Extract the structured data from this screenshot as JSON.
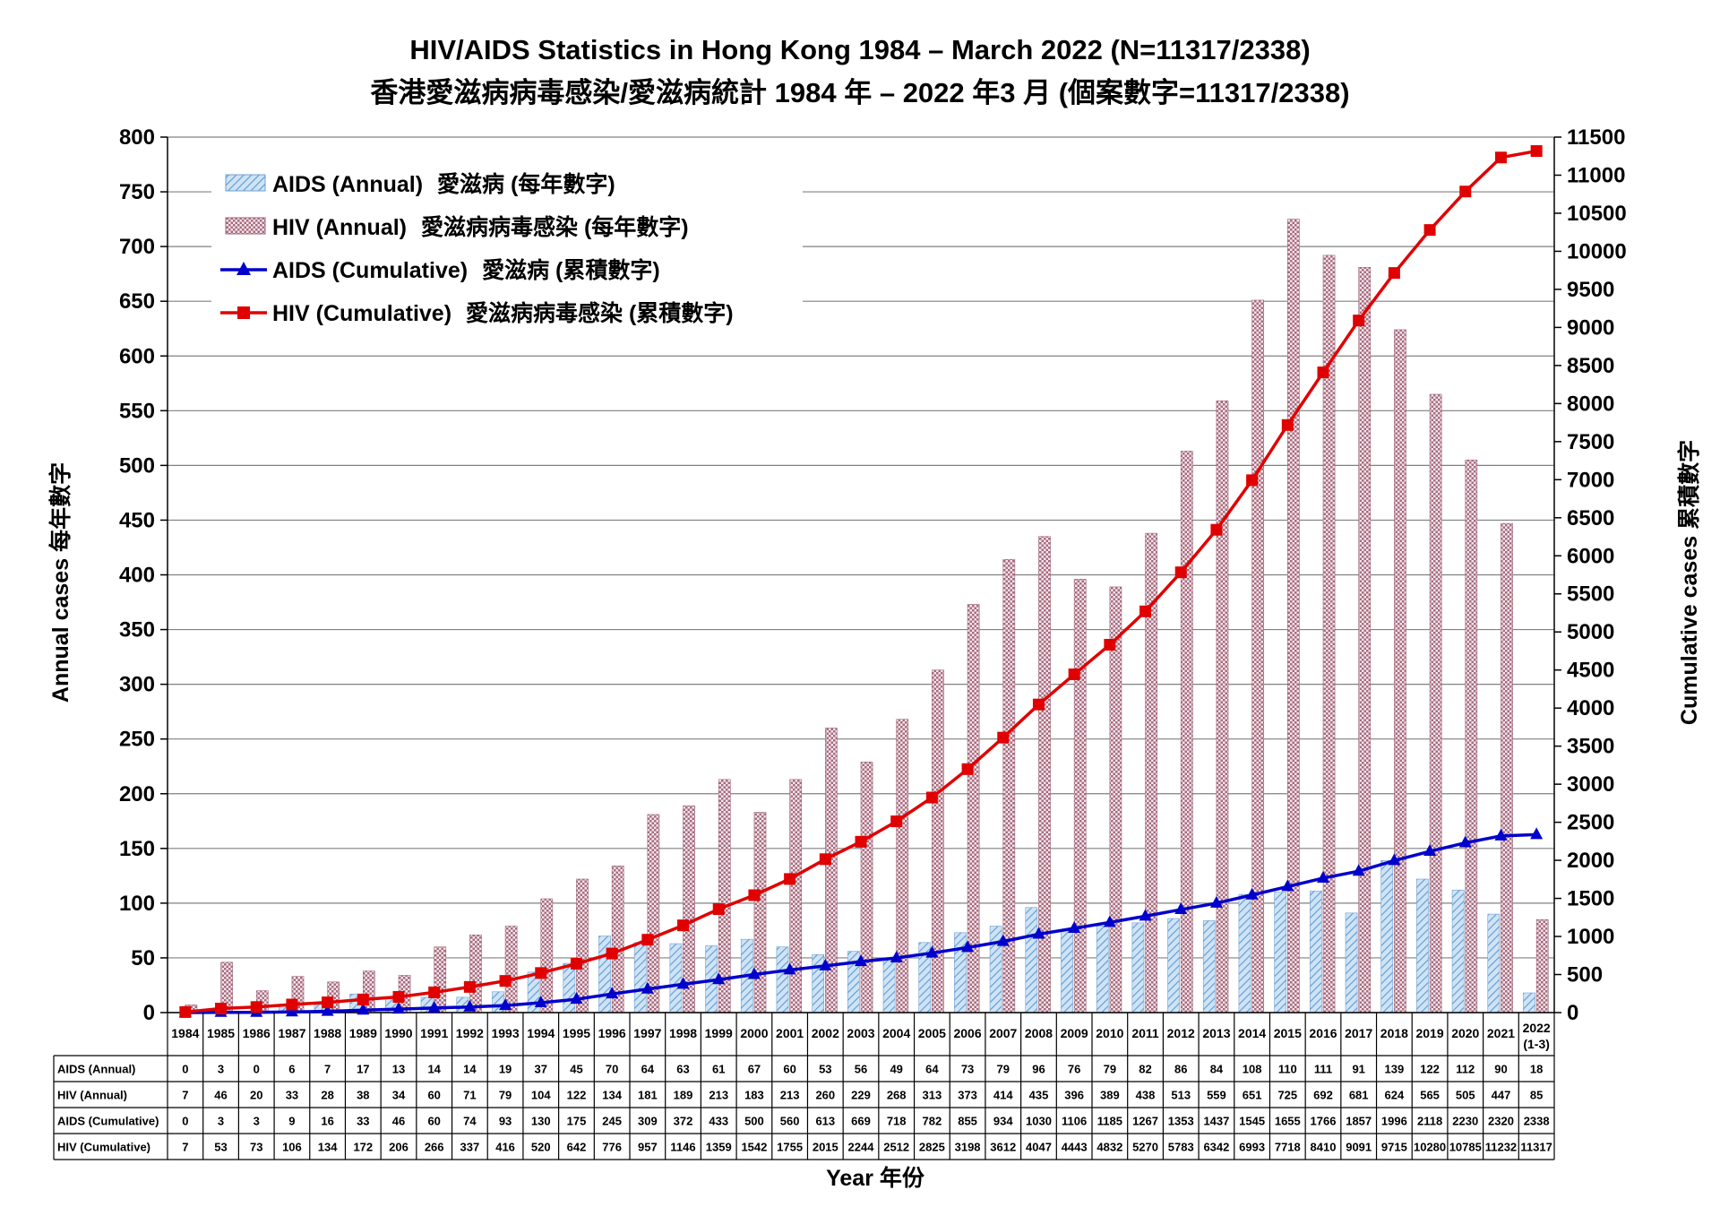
{
  "chart_data": {
    "type": "bar",
    "title": "HIV/AIDS Statistics in Hong Kong 1984 – March 2022 (N=11317/2338)",
    "subtitle": "香港愛滋病病毒感染/愛滋病統計 1984 年 – 2022 年3 月 (個案數字=11317/2338)",
    "xlabel": "Year  年份",
    "ylabel": "Annual cases  每年數字",
    "y2label": "Cumulative cases  累積數字",
    "ylim": [
      0,
      800
    ],
    "y2lim": [
      0,
      11500
    ],
    "yticks": [
      "0",
      "50",
      "100",
      "150",
      "200",
      "250",
      "300",
      "350",
      "400",
      "450",
      "500",
      "550",
      "600",
      "650",
      "700",
      "750",
      "800"
    ],
    "y2ticks": [
      "0",
      "500",
      "1000",
      "1500",
      "2000",
      "2500",
      "3000",
      "3500",
      "4000",
      "4500",
      "5000",
      "5500",
      "6000",
      "6500",
      "7000",
      "7500",
      "8000",
      "8500",
      "9000",
      "9500",
      "10000",
      "10500",
      "11000",
      "11500"
    ],
    "grid": true,
    "legend_position": "top-left",
    "categories": [
      "1984",
      "1985",
      "1986",
      "1987",
      "1988",
      "1989",
      "1990",
      "1991",
      "1992",
      "1993",
      "1994",
      "1995",
      "1996",
      "1997",
      "1998",
      "1999",
      "2000",
      "2001",
      "2002",
      "2003",
      "2004",
      "2005",
      "2006",
      "2007",
      "2008",
      "2009",
      "2010",
      "2011",
      "2012",
      "2013",
      "2014",
      "2015",
      "2016",
      "2017",
      "2018",
      "2019",
      "2020",
      "2021",
      "2022"
    ],
    "last_category_sub": "(1-3)",
    "series": [
      {
        "name": "AIDS (Annual)",
        "name_zh": "愛滋病 (每年數字)",
        "table_label": "AIDS (Annual)",
        "type": "bar",
        "axis": "left",
        "color": "#9dc3e6",
        "values": [
          0,
          3,
          0,
          6,
          7,
          17,
          13,
          14,
          14,
          19,
          37,
          45,
          70,
          64,
          63,
          61,
          67,
          60,
          53,
          56,
          49,
          64,
          73,
          79,
          96,
          76,
          79,
          82,
          86,
          84,
          108,
          110,
          111,
          91,
          139,
          122,
          112,
          90,
          18
        ]
      },
      {
        "name": "HIV (Annual)",
        "name_zh": "愛滋病病毒感染 (每年數字)",
        "table_label": "HIV (Annual)",
        "type": "bar",
        "axis": "left",
        "color": "#d9a9b8",
        "values": [
          7,
          46,
          20,
          33,
          28,
          38,
          34,
          60,
          71,
          79,
          104,
          122,
          134,
          181,
          189,
          213,
          183,
          213,
          260,
          229,
          268,
          313,
          373,
          414,
          435,
          396,
          389,
          438,
          513,
          559,
          651,
          725,
          692,
          681,
          624,
          565,
          505,
          447,
          85
        ]
      },
      {
        "name": "AIDS (Cumulative)",
        "name_zh": "愛滋病 (累積數字)",
        "table_label": "AIDS (Cumulative)",
        "type": "line",
        "axis": "right",
        "color": "#0000cc",
        "values": [
          0,
          3,
          3,
          9,
          16,
          33,
          46,
          60,
          74,
          93,
          130,
          175,
          245,
          309,
          372,
          433,
          500,
          560,
          613,
          669,
          718,
          782,
          855,
          934,
          1030,
          1106,
          1185,
          1267,
          1353,
          1437,
          1545,
          1655,
          1766,
          1857,
          1996,
          2118,
          2230,
          2320,
          2338
        ]
      },
      {
        "name": "HIV (Cumulative)",
        "name_zh": "愛滋病病毒感染 (累積數字)",
        "table_label": "HIV (Cumulative)",
        "type": "line",
        "axis": "right",
        "color": "#e00000",
        "values": [
          7,
          53,
          73,
          106,
          134,
          172,
          206,
          266,
          337,
          416,
          520,
          642,
          776,
          957,
          1146,
          1359,
          1542,
          1755,
          2015,
          2244,
          2512,
          2825,
          3198,
          3612,
          4047,
          4443,
          4832,
          5270,
          5783,
          6342,
          6993,
          7718,
          8410,
          9091,
          9715,
          10280,
          10785,
          11232,
          11317
        ]
      }
    ]
  }
}
